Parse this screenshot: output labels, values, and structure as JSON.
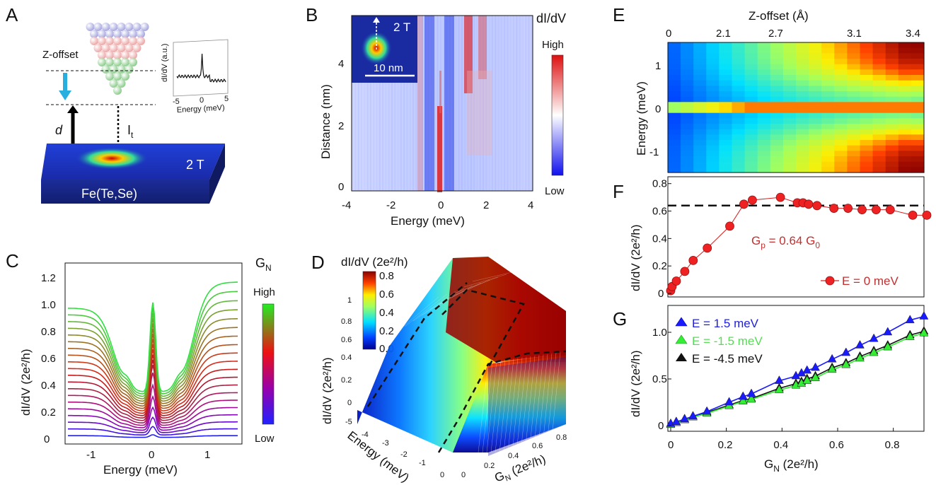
{
  "panels": {
    "A": {
      "label": "A",
      "zoffset_label": "Z-offset",
      "d_label": "d",
      "it_label": "I",
      "it_sub": "t",
      "field": "2 T",
      "material": "Fe(Te,Se)",
      "inset_ylabel": "dI/dV (a.u.)",
      "inset_xlabel": "Energy (meV)",
      "inset_ticks": [
        "-5",
        "0",
        "5"
      ]
    },
    "B": {
      "label": "B",
      "title": "dI/dV",
      "field": "2 T",
      "scale": "10 nm",
      "xlabel": "Energy (meV)",
      "ylabel": "Distance (nm)",
      "xticks": [
        "-4",
        "-2",
        "0",
        "2",
        "4"
      ],
      "yticks": [
        "0",
        "2",
        "4"
      ],
      "cbar_high": "High",
      "cbar_low": "Low"
    },
    "C": {
      "label": "C",
      "xlabel": "Energy (meV)",
      "ylabel": "dI/dV (2e²/h)",
      "xticks": [
        "-1",
        "0",
        "1"
      ],
      "yticks": [
        "0",
        "0.2",
        "0.4",
        "0.6",
        "0.8",
        "1.0",
        "1.2"
      ],
      "cbar_title": "G",
      "cbar_title_sub": "N",
      "cbar_high": "High",
      "cbar_low": "Low"
    },
    "D": {
      "label": "D",
      "cbar_title": "dI/dV (2e²/h)",
      "cbar_ticks": [
        "0.0",
        "0.2",
        "0.4",
        "0.6",
        "0.8"
      ],
      "zlabel": "dI/dV (2e²/h)",
      "zticks": [
        "0",
        "0.2",
        "0.4",
        "0.6",
        "0.8",
        "1"
      ],
      "xlabel": "Energy (meV)",
      "xticks": [
        "-5",
        "-4",
        "-3",
        "-2",
        "-1",
        "0"
      ],
      "ylabel": "G",
      "ylabel_sub": "N",
      "ylabel_tail": " (2e²/h)",
      "yticks": [
        "0",
        "0.2",
        "0.4",
        "0.6",
        "0.8"
      ]
    },
    "E": {
      "label": "E",
      "top_label": "Z-offset (Å)",
      "top_ticks": [
        "0",
        "2.1",
        "2.7",
        "3.1",
        "3.4"
      ],
      "ylabel": "Energy (meV)",
      "yticks": [
        "1",
        "0",
        "-1"
      ]
    },
    "F": {
      "label": "F",
      "ylabel": "dI/dV (2e²/h)",
      "yticks": [
        "0",
        "0.2",
        "0.4",
        "0.6",
        "0.8"
      ],
      "annotation_main": "G",
      "annotation_sub": "p",
      "annotation_mid": " = 0.64 G",
      "annotation_sub2": "0",
      "legend": "E = 0 meV"
    },
    "G": {
      "label": "G",
      "ylabel": "dI/dV (2e²/h)",
      "xlabel": "G",
      "xlabel_sub": "N",
      "xlabel_tail": " (2e²/h)",
      "xticks": [
        "0",
        "0.2",
        "0.4",
        "0.6",
        "0.8"
      ],
      "yticks": [
        "0",
        "0.5",
        "1.0"
      ],
      "legend": [
        "E =  1.5 meV",
        "E = -1.5 meV",
        "E = -4.5 meV"
      ]
    }
  },
  "chart_data": [
    {
      "panel": "F",
      "type": "scatter",
      "xlabel": "G_N (2e²/h)",
      "ylabel": "dI/dV (2e²/h)",
      "xlim": [
        0,
        0.9
      ],
      "ylim": [
        0,
        0.85
      ],
      "hline": 0.64,
      "series": [
        {
          "name": "E = 0 meV",
          "color": "#e02020",
          "x": [
            0.0,
            0.005,
            0.02,
            0.05,
            0.08,
            0.13,
            0.21,
            0.26,
            0.29,
            0.39,
            0.45,
            0.47,
            0.49,
            0.52,
            0.58,
            0.63,
            0.68,
            0.73,
            0.78,
            0.86,
            0.91
          ],
          "y": [
            0.02,
            0.05,
            0.09,
            0.16,
            0.24,
            0.33,
            0.49,
            0.65,
            0.68,
            0.7,
            0.66,
            0.66,
            0.65,
            0.64,
            0.62,
            0.62,
            0.61,
            0.61,
            0.61,
            0.57,
            0.57
          ]
        }
      ]
    },
    {
      "panel": "G",
      "type": "line",
      "xlabel": "G_N (2e²/h)",
      "ylabel": "dI/dV (2e²/h)",
      "xlim": [
        0,
        0.9
      ],
      "ylim": [
        0,
        1.25
      ],
      "series": [
        {
          "name": "E =  1.5 meV",
          "color": "#1a1aff",
          "x": [
            0.0,
            0.02,
            0.05,
            0.08,
            0.13,
            0.21,
            0.26,
            0.29,
            0.39,
            0.45,
            0.47,
            0.49,
            0.52,
            0.58,
            0.63,
            0.68,
            0.73,
            0.78,
            0.86,
            0.91
          ],
          "y": [
            0.02,
            0.04,
            0.07,
            0.1,
            0.15,
            0.25,
            0.31,
            0.34,
            0.48,
            0.53,
            0.56,
            0.59,
            0.62,
            0.71,
            0.78,
            0.86,
            0.93,
            1.0,
            1.13,
            1.17
          ]
        },
        {
          "name": "E = -1.5 meV",
          "color": "#33ee33",
          "x": [
            0.0,
            0.02,
            0.05,
            0.08,
            0.13,
            0.21,
            0.26,
            0.29,
            0.39,
            0.45,
            0.47,
            0.49,
            0.52,
            0.58,
            0.63,
            0.68,
            0.73,
            0.78,
            0.86,
            0.91
          ],
          "y": [
            0.01,
            0.03,
            0.06,
            0.09,
            0.13,
            0.21,
            0.26,
            0.28,
            0.38,
            0.43,
            0.45,
            0.48,
            0.51,
            0.6,
            0.65,
            0.72,
            0.78,
            0.84,
            0.95,
            0.99
          ]
        },
        {
          "name": "E = -4.5 meV",
          "color": "#111111",
          "x": [
            0.0,
            0.02,
            0.05,
            0.08,
            0.13,
            0.21,
            0.26,
            0.29,
            0.39,
            0.45,
            0.47,
            0.49,
            0.52,
            0.58,
            0.63,
            0.68,
            0.73,
            0.78,
            0.86,
            0.91
          ],
          "y": [
            0.01,
            0.03,
            0.06,
            0.09,
            0.14,
            0.22,
            0.27,
            0.29,
            0.4,
            0.45,
            0.47,
            0.5,
            0.53,
            0.62,
            0.67,
            0.74,
            0.8,
            0.86,
            0.97,
            1.01
          ]
        }
      ]
    }
  ]
}
